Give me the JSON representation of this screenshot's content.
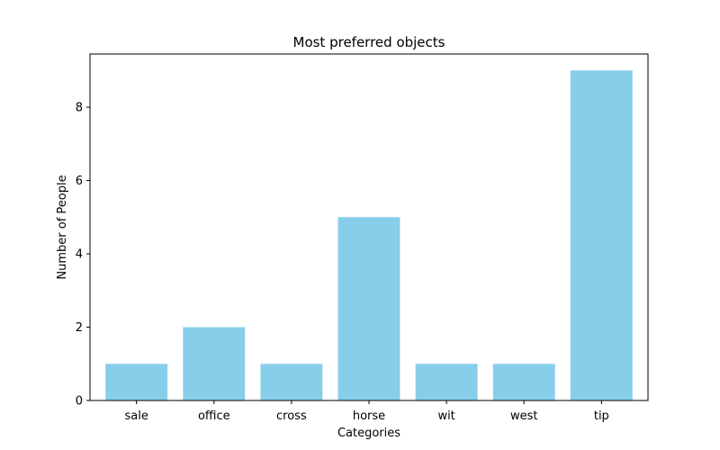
{
  "chart_data": {
    "type": "bar",
    "title": "Most preferred objects",
    "xlabel": "Categories",
    "ylabel": "Number of People",
    "categories": [
      "sale",
      "office",
      "cross",
      "horse",
      "wit",
      "west",
      "tip"
    ],
    "values": [
      1,
      2,
      1,
      5,
      1,
      1,
      9
    ],
    "ylim": [
      0,
      9.45
    ],
    "yticks": [
      0,
      2,
      4,
      6,
      8
    ],
    "bar_color": "#87ceeb",
    "grid": false,
    "legend": "none"
  }
}
